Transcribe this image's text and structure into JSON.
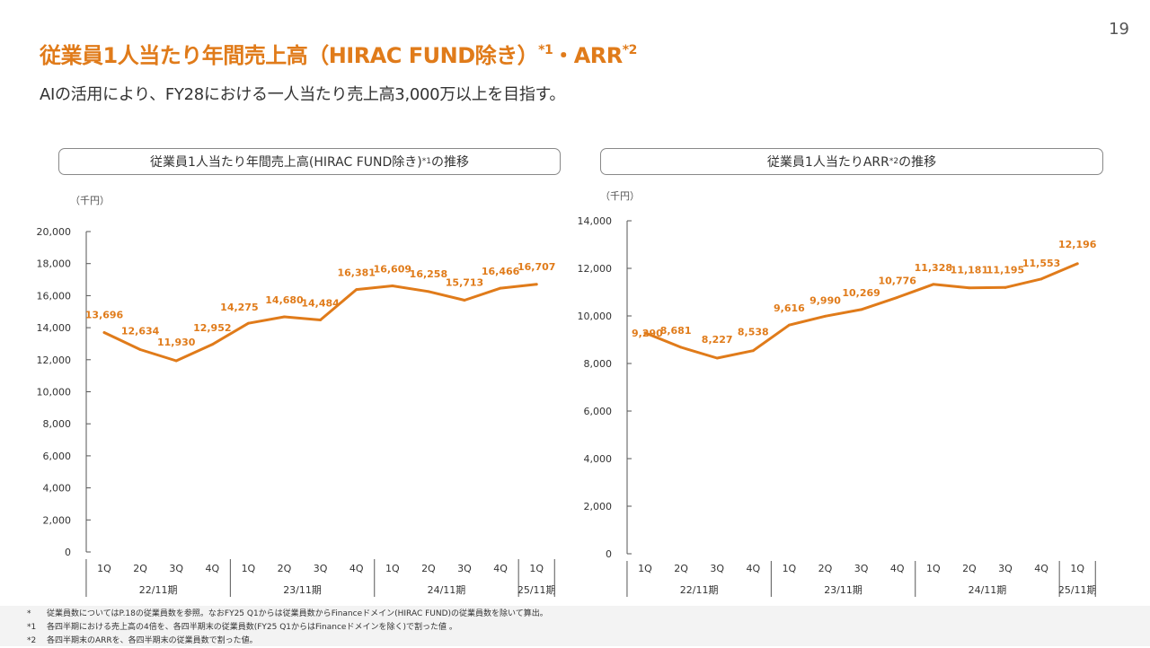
{
  "page": {
    "number": "19"
  },
  "title": {
    "main": "従業員1人当たり年間売上高（HIRAC FUND除き）",
    "sup1": "*1",
    "sep": "・ARR",
    "sup2": "*2"
  },
  "subtitle": "AIの活用により、FY28における一人当たり売上高3,000万以上を目指す。",
  "charts": {
    "left_header": {
      "text": "従業員1人当たり年間売上高(HIRAC FUND除き)",
      "sup": "*1",
      "suffix": "の推移"
    },
    "right_header": {
      "text": "従業員1人当たりARR",
      "sup": "*2",
      "suffix": "の推移"
    }
  },
  "chart_data": [
    {
      "type": "line",
      "title": "従業員1人当たり年間売上高(HIRAC FUND除き)*1の推移",
      "unit_label": "（千円）",
      "ylim": [
        0,
        20000
      ],
      "yticks": [
        "0",
        "2,000",
        "4,000",
        "6,000",
        "8,000",
        "10,000",
        "12,000",
        "14,000",
        "16,000",
        "18,000",
        "20,000"
      ],
      "categories": [
        "1Q",
        "2Q",
        "3Q",
        "4Q",
        "1Q",
        "2Q",
        "3Q",
        "4Q",
        "1Q",
        "2Q",
        "3Q",
        "4Q",
        "1Q"
      ],
      "periods": [
        {
          "label": "22/11期",
          "count": 4
        },
        {
          "label": "23/11期",
          "count": 4
        },
        {
          "label": "24/11期",
          "count": 4
        },
        {
          "label": "25/11期",
          "count": 1
        }
      ],
      "values": [
        13696,
        12634,
        11930,
        12952,
        14275,
        14680,
        14484,
        16381,
        16609,
        16258,
        15713,
        16466,
        16707
      ],
      "value_labels": [
        "13,696",
        "12,634",
        "11,930",
        "12,952",
        "14,275",
        "14,680",
        "14,484",
        "16,381",
        "16,609",
        "16,258",
        "15,713",
        "16,466",
        "16,707"
      ],
      "color": "#E07B1A"
    },
    {
      "type": "line",
      "title": "従業員1人当たりARR*2の推移",
      "unit_label": "（千円）",
      "ylim": [
        0,
        14000
      ],
      "yticks": [
        "0",
        "2,000",
        "4,000",
        "6,000",
        "8,000",
        "10,000",
        "12,000",
        "14,000"
      ],
      "categories": [
        "1Q",
        "2Q",
        "3Q",
        "4Q",
        "1Q",
        "2Q",
        "3Q",
        "4Q",
        "1Q",
        "2Q",
        "3Q",
        "4Q",
        "1Q"
      ],
      "periods": [
        {
          "label": "22/11期",
          "count": 4
        },
        {
          "label": "23/11期",
          "count": 4
        },
        {
          "label": "24/11期",
          "count": 4
        },
        {
          "label": "25/11期",
          "count": 1
        }
      ],
      "values": [
        9290,
        8681,
        8227,
        8538,
        9616,
        9990,
        10269,
        10776,
        11328,
        11181,
        11195,
        11553,
        12196
      ],
      "value_labels": [
        "9,290",
        "8,681",
        "8,227",
        "8,538",
        "9,616",
        "9,990",
        "10,269",
        "10,776",
        "11,328",
        "11,181",
        "11,195",
        "11,553",
        "12,196"
      ],
      "color": "#E07B1A"
    }
  ],
  "footnotes": [
    {
      "mark": "*",
      "text": "従業員数についてはP.18の従業員数を参照。なおFY25 Q1からは従業員数からFinanceドメイン(HIRAC FUND)の従業員数を除いて算出。"
    },
    {
      "mark": "*1",
      "text": "各四半期における売上高の4倍を、各四半期末の従業員数(FY25 Q1からはFinanceドメインを除く)で割った値 。"
    },
    {
      "mark": "*2",
      "text": "各四半期末のARRを、各四半期末の従業員数で割った値。"
    }
  ]
}
